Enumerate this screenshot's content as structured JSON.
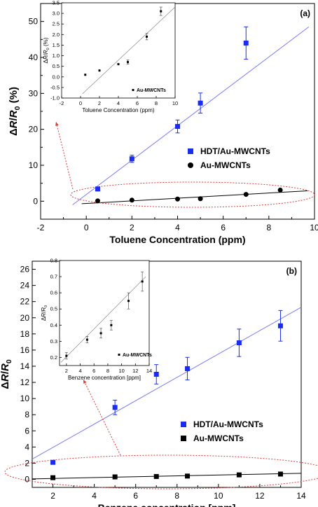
{
  "colors": {
    "blue": "#1a2cf0",
    "black": "#000000",
    "fit_blue": "#7b7bf2",
    "red_dash": "#e03a3a",
    "inset_fit": "#888888"
  },
  "chart_data": [
    {
      "type": "scatter",
      "panel_label": "(a)",
      "xlabel": "Toluene Concentration (ppm)",
      "ylabel": "ΔR/R0 (%)",
      "xlim": [
        -2,
        10
      ],
      "ylim": [
        -5,
        55
      ],
      "xticks": [
        -2,
        0,
        2,
        4,
        6,
        8,
        10
      ],
      "yticks": [
        0,
        10,
        20,
        30,
        40,
        50
      ],
      "legend": "center-right",
      "series": [
        {
          "name": "HDT/Au-MWCNTs",
          "marker": "square",
          "color": "#1a2cf0",
          "x": [
            0.5,
            2,
            4,
            5,
            7
          ],
          "y": [
            3.4,
            11.8,
            20.8,
            27.3,
            44.0
          ],
          "err": [
            0,
            1.0,
            1.8,
            2.8,
            4.5
          ],
          "fit": [
            [
              -0.6,
              -1
            ],
            [
              9.75,
              48.5
            ]
          ]
        },
        {
          "name": "Au-MWCNTs",
          "marker": "circle",
          "color": "#000000",
          "x": [
            0.5,
            2,
            4,
            5,
            7,
            8.5
          ],
          "y": [
            0.1,
            0.3,
            0.6,
            0.7,
            1.9,
            3.1
          ],
          "err": [
            0,
            0,
            0,
            0,
            0,
            0
          ],
          "fit": [
            [
              -0.2,
              -0.7
            ],
            [
              9.7,
              2.9
            ]
          ]
        }
      ],
      "inset": {
        "xlabel": "Toluene Concentration (ppm)",
        "ylabel": "ΔR/R0 (%)",
        "xlim": [
          -2,
          10
        ],
        "ylim": [
          -1.0,
          3.5
        ],
        "xticks": [
          -2,
          0,
          2,
          4,
          6,
          8,
          10
        ],
        "yticks": [
          -1.0,
          -0.5,
          0.0,
          0.5,
          1.0,
          1.5,
          2.0,
          2.5,
          3.0,
          3.5
        ],
        "legend": "Au-MWCNTs",
        "x": [
          0.5,
          2,
          4,
          5,
          7,
          8.5
        ],
        "y": [
          0.1,
          0.3,
          0.6,
          0.7,
          1.9,
          3.1
        ],
        "err": [
          0,
          0,
          0,
          0.1,
          0.15,
          0.2
        ],
        "fit": [
          [
            0.2,
            -0.8
          ],
          [
            10,
            3.3
          ]
        ]
      }
    },
    {
      "type": "scatter",
      "panel_label": "(b)",
      "xlabel": "Benzene concentration [ppm]",
      "ylabel": "ΔR/R0",
      "xlim": [
        1,
        14
      ],
      "ylim": [
        -1,
        27
      ],
      "xticks": [
        2,
        4,
        6,
        8,
        10,
        12,
        14
      ],
      "yticks": [
        0,
        2,
        4,
        6,
        8,
        10,
        12,
        14,
        16,
        18,
        20,
        22,
        24,
        26
      ],
      "legend": "center-right",
      "series": [
        {
          "name": "HDT/Au-MWCNTs",
          "marker": "square",
          "color": "#1a2cf0",
          "x": [
            2,
            5,
            7,
            8.5,
            11,
            13
          ],
          "y": [
            2.1,
            8.9,
            13.0,
            13.7,
            16.9,
            19.0
          ],
          "err": [
            0,
            0.9,
            1.2,
            1.4,
            1.7,
            1.9
          ],
          "fit": [
            [
              1,
              2.5
            ],
            [
              14,
              21.3
            ]
          ]
        },
        {
          "name": "Au-MWCNTs",
          "marker": "square",
          "color": "#000000",
          "x": [
            2,
            5,
            7,
            8.5,
            11,
            13
          ],
          "y": [
            0.2,
            0.3,
            0.35,
            0.4,
            0.55,
            0.65
          ],
          "err": [
            0,
            0,
            0,
            0,
            0,
            0
          ],
          "fit": [
            [
              1,
              0.05
            ],
            [
              14,
              0.75
            ]
          ]
        }
      ],
      "inset": {
        "xlabel": "Benzene concentration [ppm]",
        "ylabel": "ΔR/R0",
        "xlim": [
          1,
          14
        ],
        "ylim": [
          0.15,
          0.8
        ],
        "xticks": [
          2,
          4,
          6,
          8,
          10,
          12,
          14
        ],
        "yticks": [
          0.2,
          0.3,
          0.4,
          0.5,
          0.6,
          0.7,
          0.8
        ],
        "legend": "Au-MWCNTs",
        "x": [
          2,
          5,
          7,
          8.5,
          11,
          13
        ],
        "y": [
          0.21,
          0.31,
          0.35,
          0.4,
          0.55,
          0.67
        ],
        "err": [
          0.02,
          0.02,
          0.03,
          0.03,
          0.05,
          0.06
        ],
        "fit": [
          [
            1.2,
            0.17
          ],
          [
            13.5,
            0.7
          ]
        ]
      }
    }
  ]
}
